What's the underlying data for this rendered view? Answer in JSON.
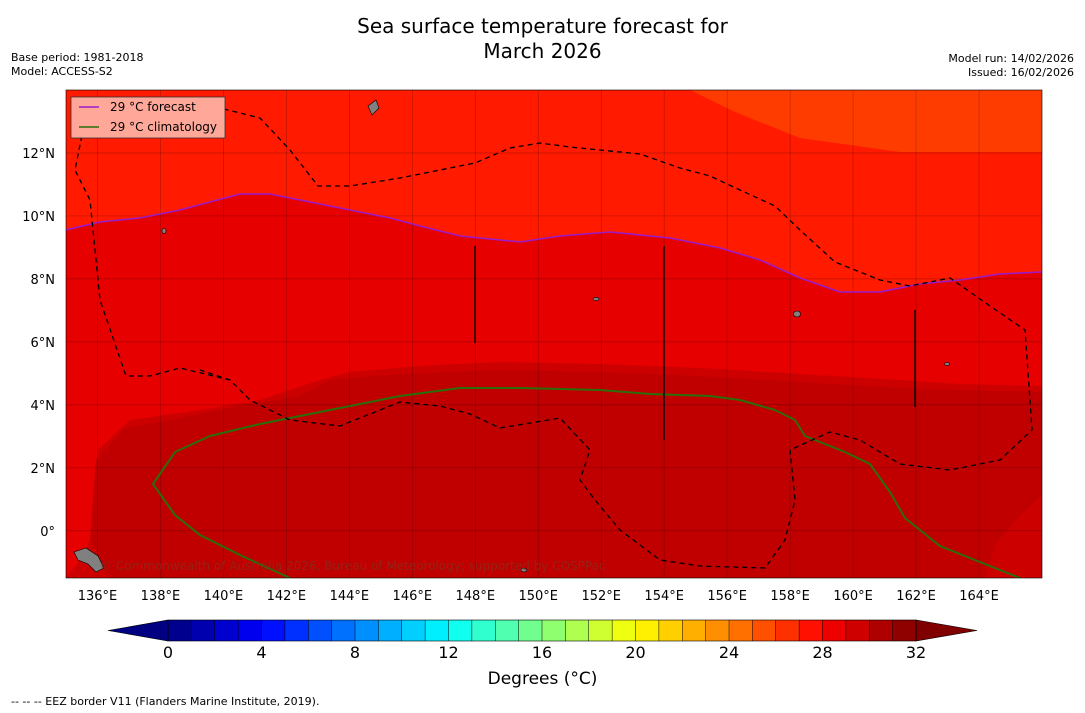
{
  "title": {
    "line1": "Sea surface temperature forecast for",
    "line2": "March 2026"
  },
  "meta_left": {
    "base_period": "Base period: 1981-2018",
    "model": "Model: ACCESS-S2"
  },
  "meta_right": {
    "model_run": "Model run: 14/02/2026",
    "issued": "Issued: 16/02/2026"
  },
  "map": {
    "lon_range": [
      135,
      166
    ],
    "lat_range": [
      -1.5,
      14
    ],
    "lon_ticks": [
      "136°E",
      "138°E",
      "140°E",
      "142°E",
      "144°E",
      "146°E",
      "148°E",
      "150°E",
      "152°E",
      "154°E",
      "156°E",
      "158°E",
      "160°E",
      "162°E",
      "164°E"
    ],
    "lat_ticks": [
      "0°",
      "2°N",
      "4°N",
      "6°N",
      "8°N",
      "10°N",
      "12°N"
    ],
    "colors": {
      "sst_gt_32": "#ff3c00",
      "sst_29_30": "#ff1a00",
      "sst_30_31": "#e60000",
      "sst_31_32": "#cd0000",
      "sst_32_33": "#c00000",
      "forecast_line": "#9b1bc9",
      "climatology_line": "#2a6e0a",
      "eez_line": "#000000",
      "land": "#808080"
    },
    "legend": {
      "forecast": "29 °C  forecast",
      "climatology": "29 °C  climatology"
    },
    "credit": "© Commonwealth of Australia 2026, Bureau of Meteorology; supported by COSPPac"
  },
  "colorbar": {
    "min": 0,
    "max": 32,
    "step": 1,
    "tick_labels": [
      "0",
      "4",
      "8",
      "12",
      "16",
      "20",
      "24",
      "28",
      "32"
    ],
    "label": "Degrees (°C)"
  },
  "footnote": "--  --  -- EEZ border V11 (Flanders Marine Institute, 2019)."
}
